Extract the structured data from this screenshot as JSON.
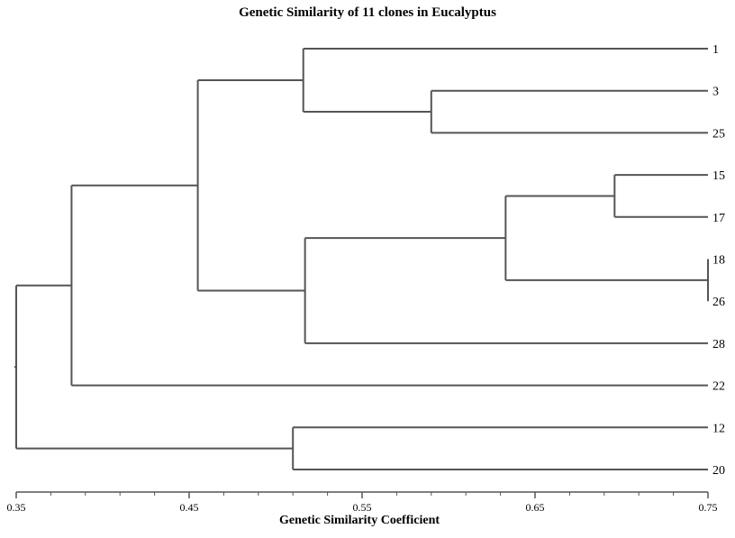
{
  "chart_data": {
    "type": "dendrogram",
    "title": "Genetic Similarity of 11 clones in Eucalyptus",
    "xlabel": "Genetic Similarity Coefficient",
    "xlim": [
      0.35,
      0.75
    ],
    "ticks": [
      "0.35",
      "0.45",
      "0.55",
      "0.65",
      "0.75"
    ],
    "leaves": [
      "1",
      "3",
      "25",
      "15",
      "17",
      "18",
      "26",
      "28",
      "22",
      "12",
      "20"
    ],
    "merges": [
      {
        "a": "leaf:18",
        "b": "leaf:26",
        "similarity": 0.75
      },
      {
        "a": "leaf:15",
        "b": "leaf:17",
        "similarity": 0.696
      },
      {
        "a": "leaf:3",
        "b": "leaf:25",
        "similarity": 0.59
      },
      {
        "a": "m1",
        "b": "m0",
        "similarity": 0.633
      },
      {
        "a": "leaf:1",
        "b": "m2",
        "similarity": 0.516
      },
      {
        "a": "m3",
        "b": "leaf:28",
        "similarity": 0.517
      },
      {
        "a": "m4",
        "b": "m5",
        "similarity": 0.455
      },
      {
        "a": "m6",
        "b": "leaf:22",
        "similarity": 0.382
      },
      {
        "a": "leaf:12",
        "b": "leaf:20",
        "similarity": 0.51
      },
      {
        "a": "m7",
        "b": "m8",
        "similarity": 0.35
      }
    ]
  }
}
